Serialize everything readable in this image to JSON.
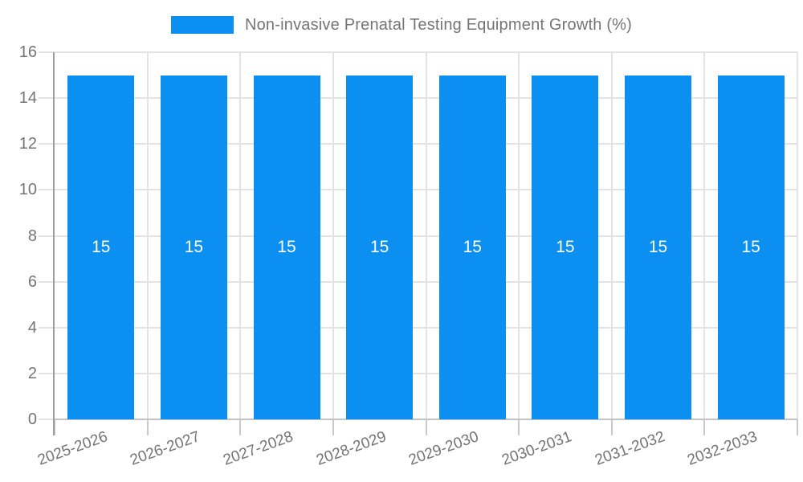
{
  "chart_data": {
    "type": "bar",
    "title": "Non-invasive Prenatal Testing Equipment Growth (%)",
    "series": [
      {
        "name": "Non-invasive Prenatal Testing Equipment Growth (%)",
        "values": [
          15,
          15,
          15,
          15,
          15,
          15,
          15,
          15
        ]
      }
    ],
    "categories": [
      "2025-2026",
      "2026-2027",
      "2027-2028",
      "2028-2029",
      "2029-2030",
      "2030-2031",
      "2031-2032",
      "2032-2033"
    ],
    "bar_value_labels": [
      "15",
      "15",
      "15",
      "15",
      "15",
      "15",
      "15",
      "15"
    ],
    "xlabel": "",
    "ylabel": "",
    "ylim": [
      0,
      16
    ],
    "yticks": [
      0,
      2,
      4,
      6,
      8,
      10,
      12,
      14,
      16
    ],
    "grid": true,
    "legend_position": "top-center",
    "x_label_rotation_deg": -20,
    "colors": {
      "bar": "#0b90f2",
      "bar_value_label": "#ffffff",
      "axis_text": "#757575",
      "grid_line": "#e3e3e3",
      "axis_line": "#9e9e9e",
      "tick_line": "#c9c9c9",
      "baseline": "#c4c4c4",
      "background": "#ffffff"
    }
  }
}
